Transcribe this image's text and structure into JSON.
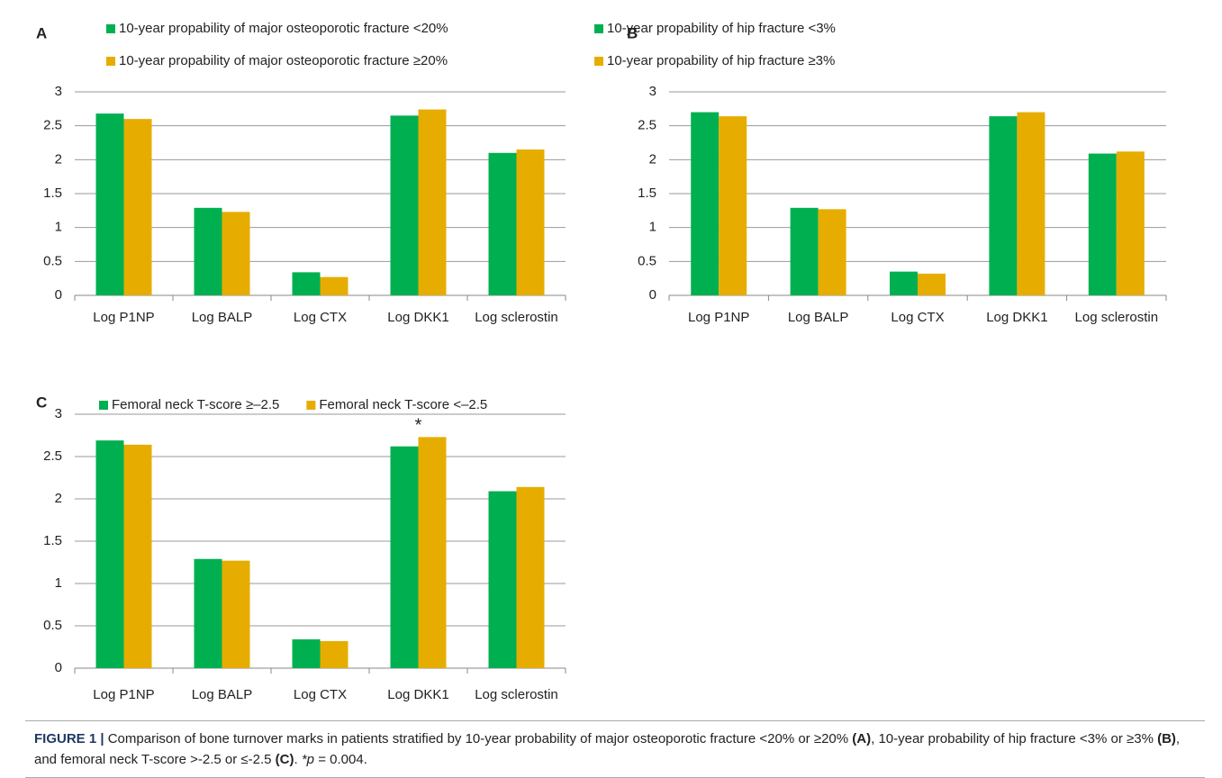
{
  "chart_data": [
    {
      "type": "bar",
      "label": "A",
      "categories": [
        "Log P1NP",
        "Log BALP",
        "Log CTX",
        "Log DKK1",
        "Log sclerostin"
      ],
      "series": [
        {
          "name": "10-year propability of major osteoporotic fracture <20%",
          "color": "#00b050",
          "values": [
            2.68,
            1.29,
            0.34,
            2.65,
            2.1
          ]
        },
        {
          "name": "10-year propability of major osteoporotic fracture ≥20%",
          "color": "#e6ad00",
          "values": [
            2.6,
            1.23,
            0.27,
            2.74,
            2.15
          ]
        }
      ],
      "ylim": [
        0,
        3
      ],
      "yticks": [
        0,
        0.5,
        1,
        1.5,
        2,
        2.5,
        3
      ],
      "grid": true,
      "legend_orientation": "vertical"
    },
    {
      "type": "bar",
      "label": "B",
      "categories": [
        "Log P1NP",
        "Log BALP",
        "Log CTX",
        "Log DKK1",
        "Log sclerostin"
      ],
      "series": [
        {
          "name": "10-year propability of hip fracture <3%",
          "color": "#00b050",
          "values": [
            2.7,
            1.29,
            0.35,
            2.64,
            2.09
          ]
        },
        {
          "name": "10-year propability of hip fracture ≥3%",
          "color": "#e6ad00",
          "values": [
            2.64,
            1.27,
            0.32,
            2.7,
            2.12
          ]
        }
      ],
      "ylim": [
        0,
        3
      ],
      "yticks": [
        0,
        0.5,
        1,
        1.5,
        2,
        2.5,
        3
      ],
      "grid": true,
      "legend_orientation": "vertical"
    },
    {
      "type": "bar",
      "label": "C",
      "categories": [
        "Log P1NP",
        "Log BALP",
        "Log CTX",
        "Log DKK1",
        "Log sclerostin"
      ],
      "series": [
        {
          "name": "Femoral neck T-score ≥–2.5",
          "color": "#00b050",
          "values": [
            2.69,
            1.29,
            0.34,
            2.62,
            2.09
          ]
        },
        {
          "name": "Femoral neck T-score <–2.5",
          "color": "#e6ad00",
          "values": [
            2.64,
            1.27,
            0.32,
            2.73,
            2.14
          ]
        }
      ],
      "ylim": [
        0,
        3
      ],
      "yticks": [
        0,
        0.5,
        1,
        1.5,
        2,
        2.5,
        3
      ],
      "grid": true,
      "legend_orientation": "horizontal",
      "annotations": [
        {
          "text": "*",
          "category": "Log DKK1",
          "series": "Femoral neck T-score <–2.5"
        }
      ]
    }
  ],
  "caption": [
    "FIGURE 1 |",
    "Comparison of bone turnover marks in patients stratified by 10-year probability of major osteoporotic fracture <20% or ≥20%",
    "(A)",
    ", 10-year probability of hip fracture <3% or ≥3%",
    "(B)",
    ", and femoral neck T-score >-2.5 or ≤-2.5",
    "(C)",
    ".",
    "*p",
    "= 0.004."
  ]
}
